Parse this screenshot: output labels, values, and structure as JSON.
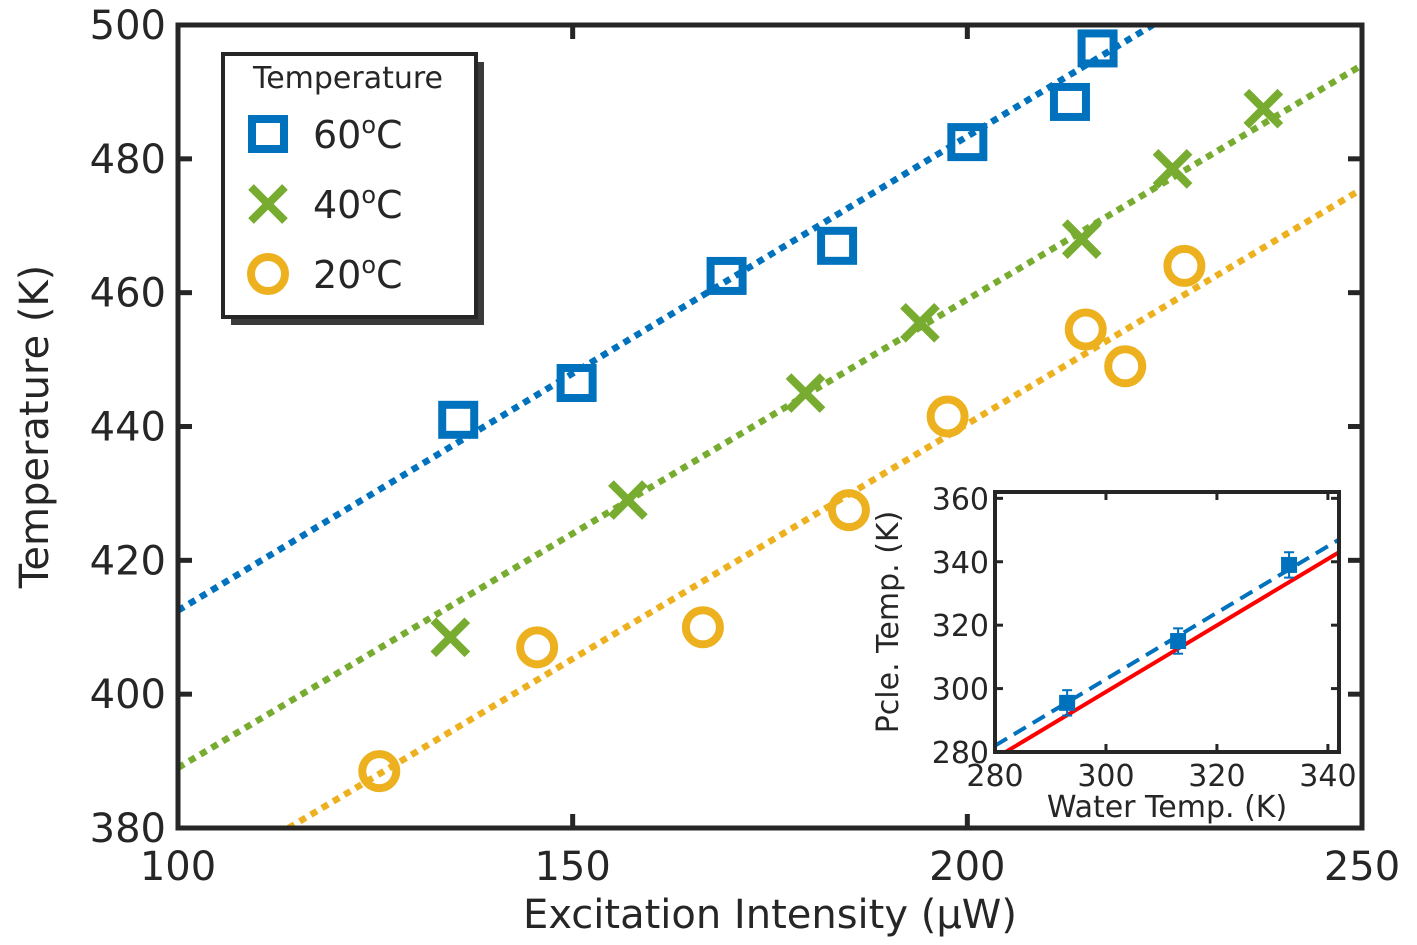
{
  "chart_data": [
    {
      "type": "scatter",
      "xlabel": "Excitation Intensity (µW)",
      "ylabel": "Temperature (K)",
      "xlim": [
        100,
        250
      ],
      "ylim": [
        380,
        500
      ],
      "xticks": [
        100,
        150,
        200,
        250
      ],
      "yticks": [
        380,
        400,
        420,
        440,
        460,
        480,
        500
      ],
      "legend": {
        "title": "Temperature",
        "placement": "top-left"
      },
      "series": [
        {
          "name": "60",
          "name_sup": "o",
          "name_suffix": "C",
          "marker": "square",
          "color": "#0072BD",
          "points": [
            [
              135.5,
              441
            ],
            [
              150.5,
              446.5
            ],
            [
              169.5,
              462.5
            ],
            [
              183.5,
              467
            ],
            [
              200,
              482.5
            ],
            [
              213,
              488.5
            ],
            [
              216.5,
              496.5
            ]
          ],
          "fit": {
            "style": "dotted",
            "x": [
              100,
              223.5
            ],
            "y": [
              412.5,
              500
            ]
          }
        },
        {
          "name": "40",
          "name_sup": "o",
          "name_suffix": "C",
          "marker": "x",
          "color": "#77AC30",
          "points": [
            [
              134.5,
              408.5
            ],
            [
              157,
              429
            ],
            [
              179.5,
              445
            ],
            [
              194,
              455.5
            ],
            [
              214.5,
              468
            ],
            [
              226,
              478.5
            ],
            [
              237.5,
              487.5
            ]
          ],
          "fit": {
            "style": "dotted",
            "x": [
              100,
              250
            ],
            "y": [
              389,
              494
            ]
          }
        },
        {
          "name": "20",
          "name_sup": "o",
          "name_suffix": "C",
          "marker": "circle",
          "color": "#EDB120",
          "points": [
            [
              125.5,
              388.5
            ],
            [
              145.5,
              407
            ],
            [
              166.5,
              410
            ],
            [
              185,
              427.5
            ],
            [
              197.5,
              441.5
            ],
            [
              215,
              454.5
            ],
            [
              220,
              449
            ],
            [
              227.5,
              464
            ]
          ],
          "fit": {
            "style": "dotted",
            "x": [
              114,
              250
            ],
            "y": [
              380,
              475.5
            ]
          }
        }
      ]
    },
    {
      "type": "scatter",
      "title": "",
      "xlabel": "Water Temp. (K)",
      "ylabel": "Pcle. Temp. (K)",
      "xlim": [
        280,
        342
      ],
      "ylim": [
        280,
        362
      ],
      "xticks": [
        280,
        300,
        320,
        340
      ],
      "yticks": [
        280,
        300,
        320,
        340,
        360
      ],
      "series": [
        {
          "marker": "square-filled",
          "color": "#0072BD",
          "points": [
            [
              293,
              295.5
            ],
            [
              313,
              315
            ],
            [
              333,
              339
            ]
          ],
          "errors": [
            4,
            4,
            4
          ]
        }
      ],
      "lines": [
        {
          "style": "dashed",
          "color": "#0072BD",
          "x": [
            280,
            342
          ],
          "y": [
            282,
            347
          ]
        },
        {
          "style": "solid",
          "color": "#FF0000",
          "x": [
            280,
            342
          ],
          "y": [
            278,
            343
          ]
        }
      ]
    }
  ]
}
